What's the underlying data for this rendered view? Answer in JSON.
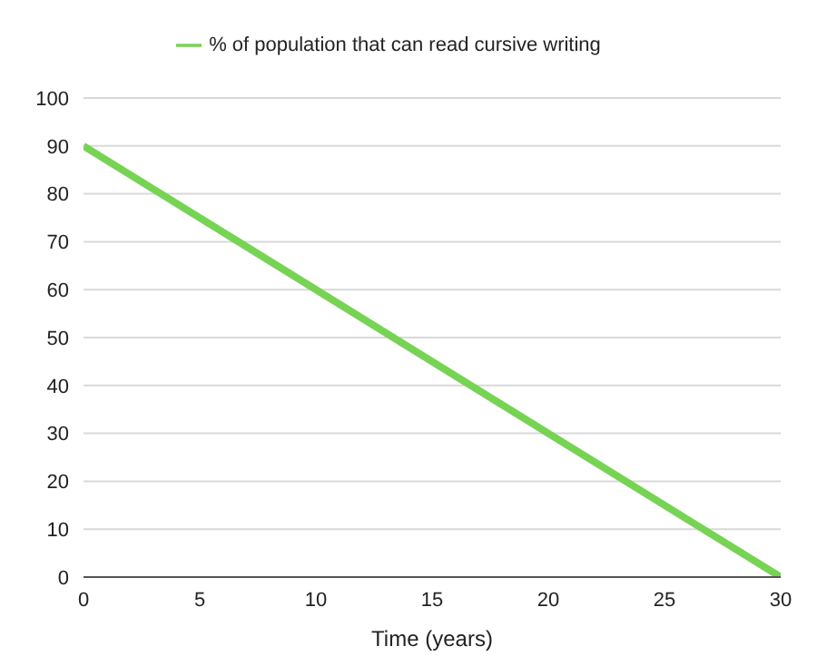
{
  "chart_data": {
    "type": "line",
    "xlabel": "Time (years)",
    "x": [
      0,
      30
    ],
    "series": [
      {
        "name": "% of population that can read cursive writing",
        "color": "#77d354",
        "values": [
          90,
          0
        ]
      }
    ],
    "xlim": [
      0,
      30
    ],
    "xticks": [
      0,
      5,
      10,
      15,
      20,
      25,
      30
    ],
    "ylim": [
      0,
      100
    ],
    "yticks": [
      0,
      10,
      20,
      30,
      40,
      50,
      60,
      70,
      80,
      90,
      100
    ],
    "grid": "y",
    "legend": "top",
    "marker": "none",
    "line_style": "solid"
  }
}
